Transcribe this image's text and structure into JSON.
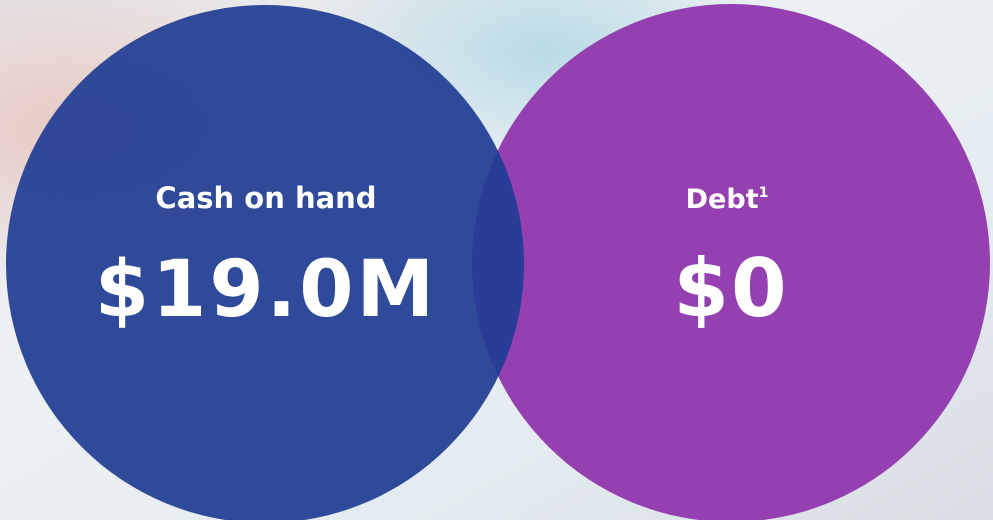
{
  "circles": [
    {
      "label": "Cash on hand",
      "value": "$19.0M"
    },
    {
      "label": "Debt",
      "footnote": "1",
      "value": "$0"
    }
  ]
}
